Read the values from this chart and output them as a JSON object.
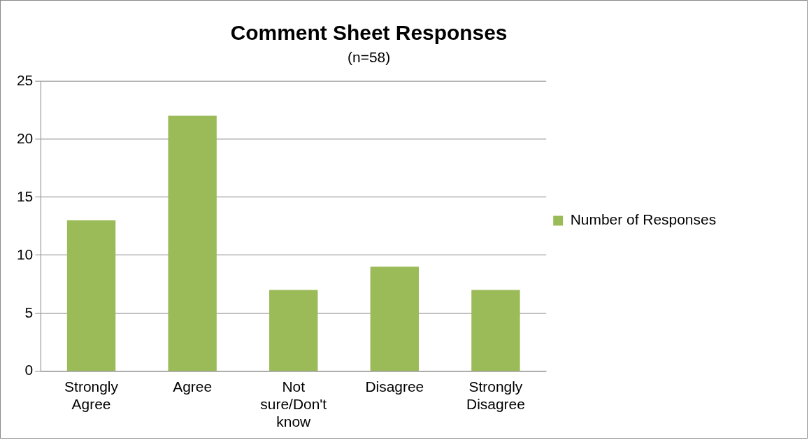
{
  "chart_data": {
    "type": "bar",
    "title": "Comment Sheet Responses",
    "subtitle": "(n=58)",
    "categories": [
      "Strongly Agree",
      "Agree",
      "Not sure/Don't know",
      "Disagree",
      "Strongly Disagree"
    ],
    "series": [
      {
        "name": "Number of Responses",
        "color": "#9bbb59",
        "values": [
          13,
          22,
          7,
          9,
          7
        ]
      }
    ],
    "ylim": [
      0,
      25
    ],
    "yticks": [
      0,
      5,
      10,
      15,
      20,
      25
    ],
    "grid": "y",
    "legend": "right"
  }
}
